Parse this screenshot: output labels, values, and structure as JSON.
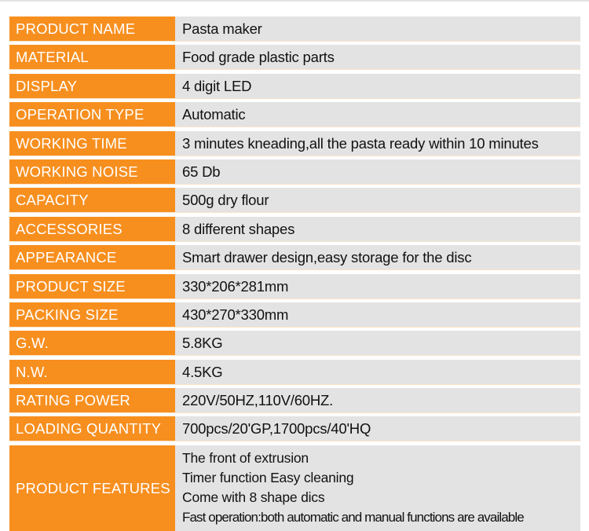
{
  "colors": {
    "label_bg": "#F78F1F",
    "value_bg": "#E3E3E3"
  },
  "specs": [
    {
      "label": "PRODUCT NAME",
      "value": "Pasta maker"
    },
    {
      "label": "MATERIAL",
      "value": "Food grade plastic parts"
    },
    {
      "label": "DISPLAY",
      "value": "4 digit LED"
    },
    {
      "label": "OPERATION TYPE",
      "value": "Automatic"
    },
    {
      "label": "WORKING TIME",
      "value": "3 minutes kneading,all the pasta ready within 10 minutes"
    },
    {
      "label": "WORKING NOISE",
      "value": "65 Db"
    },
    {
      "label": "CAPACITY",
      "value": "500g dry flour"
    },
    {
      "label": "ACCESSORIES",
      "value": "8 different shapes"
    },
    {
      "label": "APPEARANCE",
      "value": "Smart drawer design,easy storage for the disc"
    },
    {
      "label": "PRODUCT SIZE",
      "value": "330*206*281mm"
    },
    {
      "label": "PACKING SIZE",
      "value": "430*270*330mm"
    },
    {
      "label": "G.W.",
      "value": "5.8KG"
    },
    {
      "label": "N.W.",
      "value": "4.5KG"
    },
    {
      "label": "RATING POWER",
      "value": "220V/50HZ,110V/60HZ."
    },
    {
      "label": "LOADING QUANTITY",
      "value": "700pcs/20'GP,1700pcs/40'HQ"
    }
  ],
  "features": {
    "label": "PRODUCT FEATURES",
    "lines": [
      "The front of  extrusion",
      "Timer function Easy cleaning",
      "Come with 8 shape dics",
      "Fast operation:both automatic and manual functions are available"
    ]
  }
}
